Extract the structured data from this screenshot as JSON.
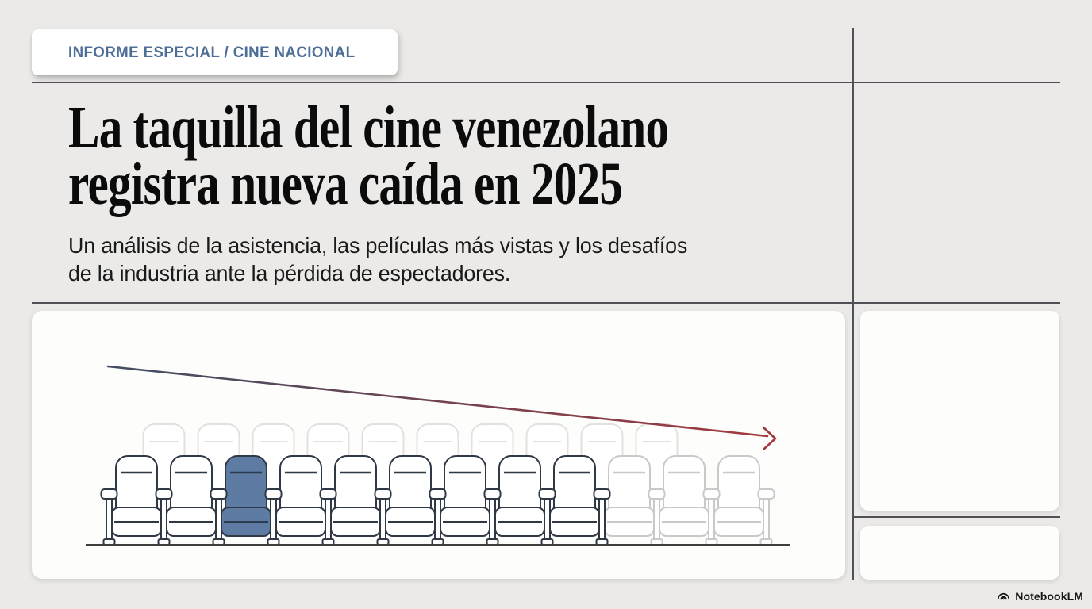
{
  "header": {
    "kicker": "INFORME ESPECIAL / CINE NACIONAL",
    "title_lines": [
      "La taquilla del cine venezolano",
      "registra nueva caída en 2025"
    ],
    "subtitle_lines": [
      "Un análisis de la asistencia, las películas más vistas y los desafíos",
      "de la industria ante la pérdida de espectadores."
    ]
  },
  "illustration": {
    "kind": "cinema-seats-with-declining-arrow",
    "front_seats_total": 12,
    "highlighted_seat_index": 2,
    "faded_seats_from_index": 9,
    "back_row_seats_total": 10,
    "colors": {
      "seat_outline": "#2f3946",
      "seat_fill": "#ffffff",
      "highlight_fill": "#5d7ba3",
      "highlight_stitch": "#2c3a50",
      "faded_outline": "#c9c9c9",
      "back_row_outline": "#e3e1df",
      "arrow_start": "#3f4e64",
      "arrow_end": "#a2393d",
      "floor": "#3f3f3f"
    }
  },
  "brand": {
    "label": "NotebookLM",
    "icon": "notebooklm-logo-icon"
  },
  "accents": {
    "page_bg": "#ebeae8",
    "card_bg": "#fdfdfc",
    "rule_color": "#515155",
    "kicker_color": "#4d6e97",
    "title_color": "#0b0b0b",
    "subtitle_color": "#1a1a1a",
    "brand_color": "#161616"
  }
}
